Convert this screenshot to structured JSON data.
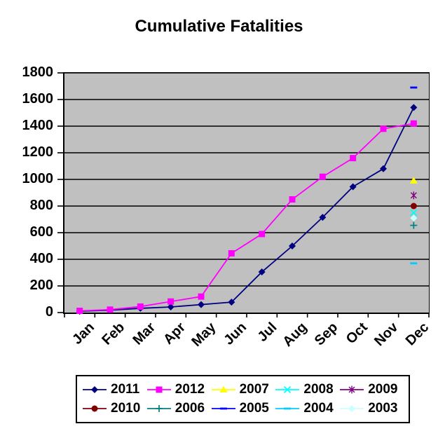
{
  "title": "Cumulative Fatalities",
  "chart_data": {
    "type": "line",
    "title": "Cumulative Fatalities",
    "xlabel": "",
    "ylabel": "",
    "categories": [
      "Jan",
      "Feb",
      "Mar",
      "Apr",
      "May",
      "Jun",
      "Jul",
      "Aug",
      "Sep",
      "Oct",
      "Nov",
      "Dec"
    ],
    "y_ticks": [
      0,
      200,
      400,
      600,
      800,
      1000,
      1200,
      1400,
      1600,
      1800
    ],
    "ylim": [
      0,
      1800
    ],
    "grid": true,
    "plot_bg_color": "#c0c0c0",
    "gridline_color": "#000000",
    "axis_color": "#000000",
    "legend_position": "bottom",
    "legend_order": [
      "2011",
      "2012",
      "2007",
      "2008",
      "2009",
      "2010",
      "2006",
      "2005",
      "2004",
      "2003"
    ],
    "series": [
      {
        "name": "2011",
        "color": "#000080",
        "marker": "diamond",
        "values": [
          10,
          18,
          32,
          42,
          60,
          78,
          305,
          500,
          715,
          945,
          1080,
          1540
        ]
      },
      {
        "name": "2012",
        "color": "#ff00ff",
        "marker": "square",
        "values": [
          13,
          22,
          45,
          83,
          120,
          445,
          590,
          850,
          1020,
          1160,
          1380,
          1420
        ]
      },
      {
        "name": "2007",
        "color": "#ffff00",
        "marker": "triangle",
        "values": [
          null,
          null,
          null,
          null,
          null,
          null,
          null,
          null,
          null,
          null,
          null,
          990
        ]
      },
      {
        "name": "2008",
        "color": "#00ffff",
        "marker": "x",
        "values": [
          null,
          null,
          null,
          null,
          null,
          null,
          null,
          null,
          null,
          null,
          null,
          750
        ]
      },
      {
        "name": "2009",
        "color": "#800080",
        "marker": "star",
        "values": [
          null,
          null,
          null,
          null,
          null,
          null,
          null,
          null,
          null,
          null,
          null,
          880
        ]
      },
      {
        "name": "2010",
        "color": "#800000",
        "marker": "circle",
        "values": [
          null,
          null,
          null,
          null,
          null,
          null,
          null,
          null,
          null,
          null,
          null,
          800
        ]
      },
      {
        "name": "2006",
        "color": "#008080",
        "marker": "plus",
        "values": [
          null,
          null,
          null,
          null,
          null,
          null,
          null,
          null,
          null,
          null,
          null,
          655
        ]
      },
      {
        "name": "2005",
        "color": "#0000ff",
        "marker": "dash",
        "values": [
          null,
          null,
          null,
          null,
          null,
          null,
          null,
          null,
          null,
          null,
          null,
          1690
        ]
      },
      {
        "name": "2004",
        "color": "#00ccff",
        "marker": "dash",
        "values": [
          null,
          null,
          null,
          null,
          null,
          null,
          null,
          null,
          null,
          null,
          null,
          370
        ]
      },
      {
        "name": "2003",
        "color": "#ccffff",
        "marker": "diamond",
        "values": [
          null,
          null,
          null,
          null,
          null,
          null,
          null,
          null,
          null,
          null,
          null,
          710
        ]
      }
    ]
  }
}
